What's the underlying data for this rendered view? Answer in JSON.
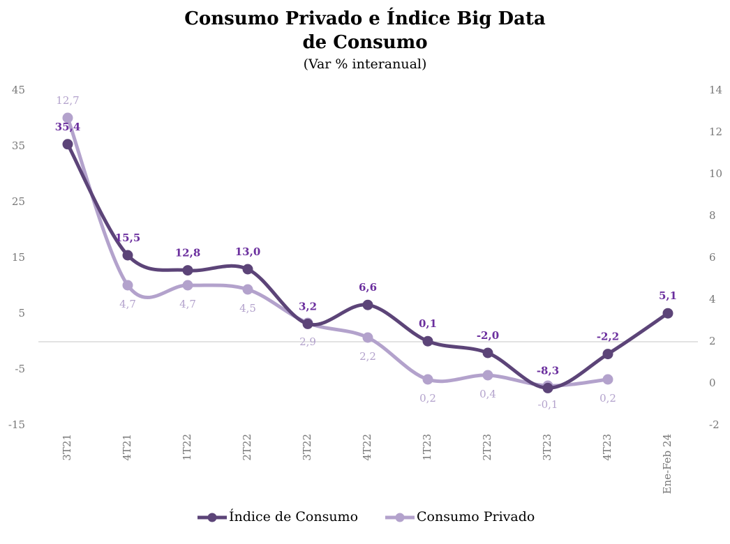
{
  "chart_data": {
    "type": "line",
    "title": [
      "Consumo Privado e Índice Big Data",
      "de Consumo"
    ],
    "subtitle": "(Var % interanual)",
    "categories": [
      "3T21",
      "4T21",
      "1T22",
      "2T22",
      "3T22",
      "4T22",
      "1T23",
      "2T23",
      "3T23",
      "4T23",
      "Ene-Feb 24"
    ],
    "series": [
      {
        "name": "Índice de Consumo",
        "color": "#5c4478",
        "values": [
          35.4,
          15.5,
          12.8,
          13.0,
          3.2,
          6.6,
          0.1,
          -2.0,
          -8.3,
          -2.2,
          5.1
        ],
        "value_labels": [
          "35,4",
          "15,5",
          "12,8",
          "13,0",
          "3,2",
          "6,6",
          "0,1",
          "-2,0",
          "-8,3",
          "-2,2",
          "5,1"
        ]
      },
      {
        "name": "Consumo Privado",
        "color": "#b3a2cc",
        "axis": "y2",
        "values": [
          12.7,
          4.7,
          4.7,
          4.5,
          2.9,
          2.2,
          0.2,
          0.4,
          -0.1,
          0.2,
          null
        ],
        "value_labels": [
          "12,7",
          "4,7",
          "4,7",
          "4,5",
          "2,9",
          "2,2",
          "0,2",
          "0,4",
          "-0,1",
          "0,2",
          null
        ]
      }
    ],
    "ylim": [
      -15,
      45
    ],
    "yticks": [
      -15,
      -5,
      5,
      15,
      25,
      35,
      45
    ],
    "y2lim": [
      -2,
      14
    ],
    "y2ticks": [
      -2,
      0,
      2,
      4,
      6,
      8,
      10,
      12,
      14
    ],
    "legend": "bottom"
  }
}
